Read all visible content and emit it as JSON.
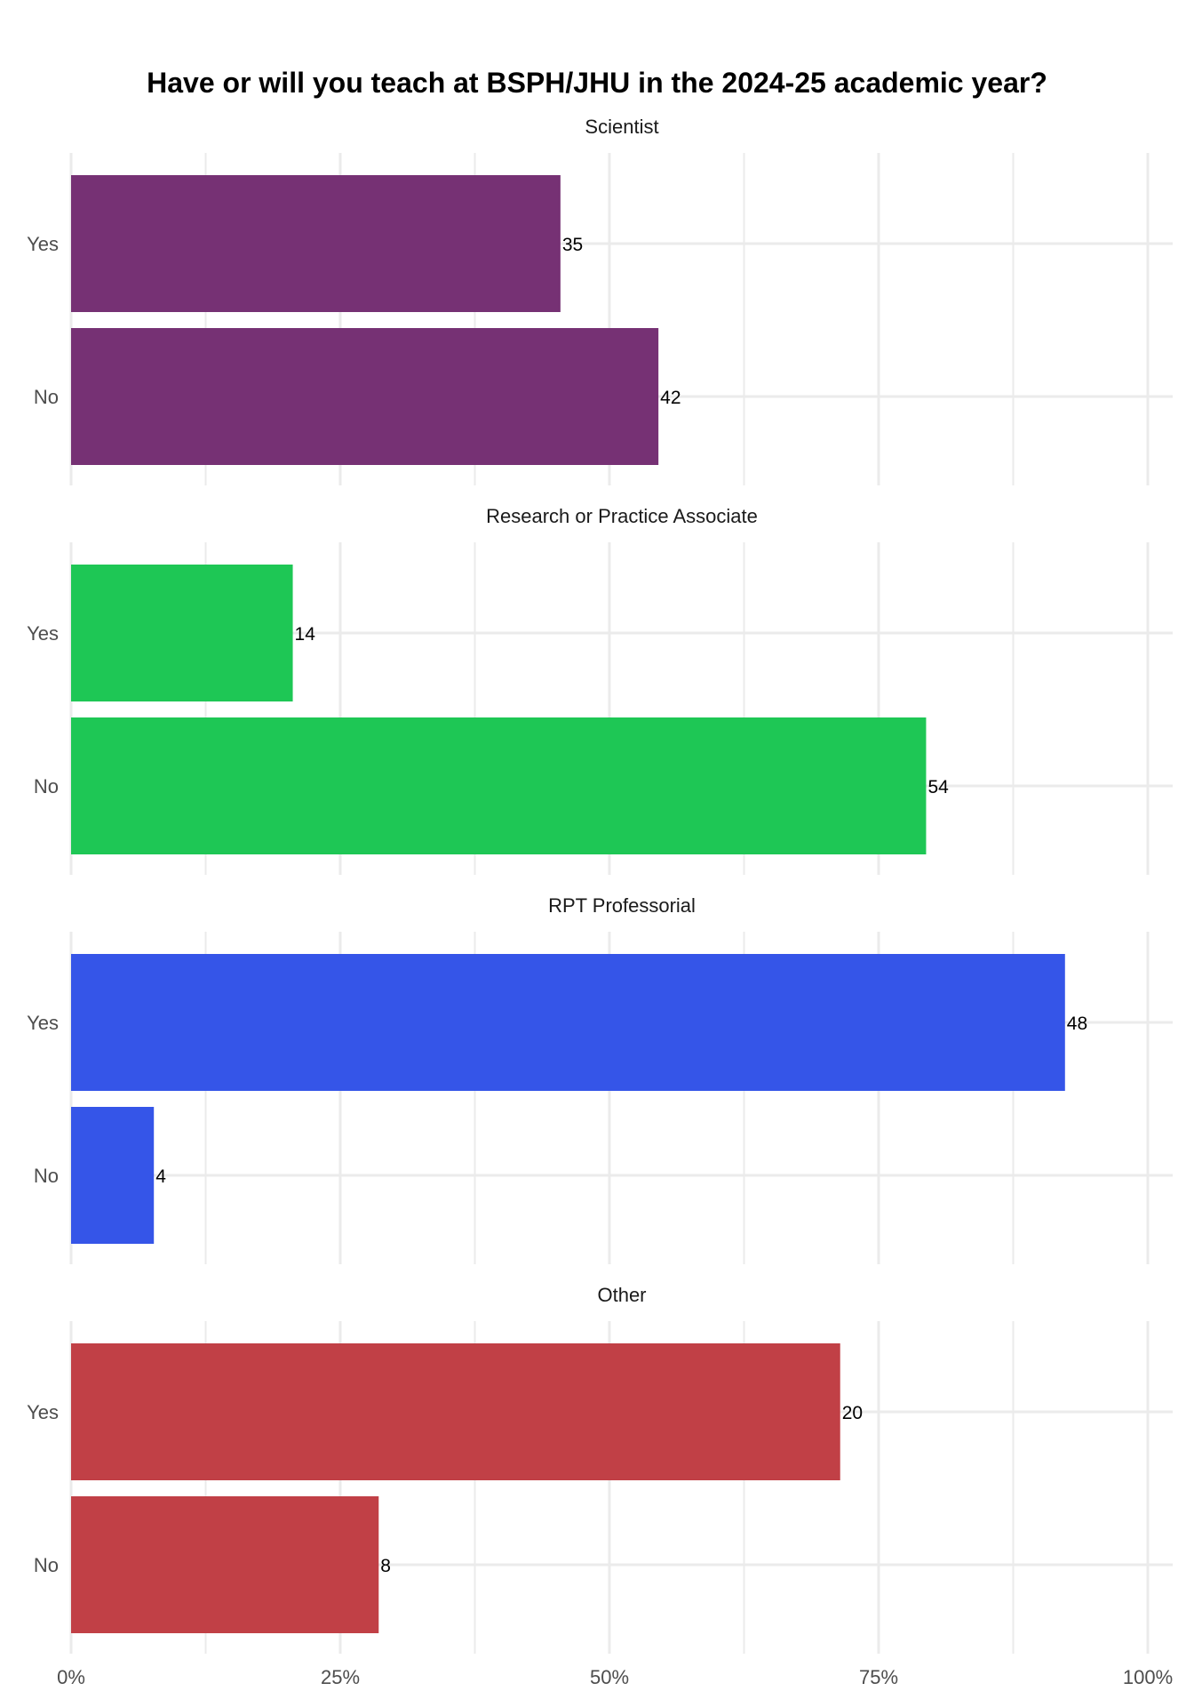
{
  "chart_data": {
    "type": "bar",
    "orientation": "horizontal",
    "title": "Have or will you teach at BSPH/JHU in the 2024-25 academic year?",
    "xlabel": "",
    "ylabel": "",
    "xlim": [
      0,
      1
    ],
    "x_ticks": [
      "0%",
      "25%",
      "50%",
      "75%",
      "100%"
    ],
    "grid": true,
    "legend": "none",
    "categories": [
      "Yes",
      "No"
    ],
    "facets": [
      {
        "name": "Scientist",
        "color": "#763174",
        "bars": [
          {
            "category": "Yes",
            "fraction": 0.4545,
            "label": "35"
          },
          {
            "category": "No",
            "fraction": 0.5455,
            "label": "42"
          }
        ]
      },
      {
        "name": "Research or Practice Associate",
        "color": "#1ec755",
        "bars": [
          {
            "category": "Yes",
            "fraction": 0.2059,
            "label": "14"
          },
          {
            "category": "No",
            "fraction": 0.7941,
            "label": "54"
          }
        ]
      },
      {
        "name": "RPT Professorial",
        "color": "#3555e8",
        "bars": [
          {
            "category": "Yes",
            "fraction": 0.9231,
            "label": "48"
          },
          {
            "category": "No",
            "fraction": 0.0769,
            "label": "4"
          }
        ]
      },
      {
        "name": "Other",
        "color": "#c14046",
        "bars": [
          {
            "category": "Yes",
            "fraction": 0.7143,
            "label": "20"
          },
          {
            "category": "No",
            "fraction": 0.2857,
            "label": "8"
          }
        ]
      }
    ]
  }
}
